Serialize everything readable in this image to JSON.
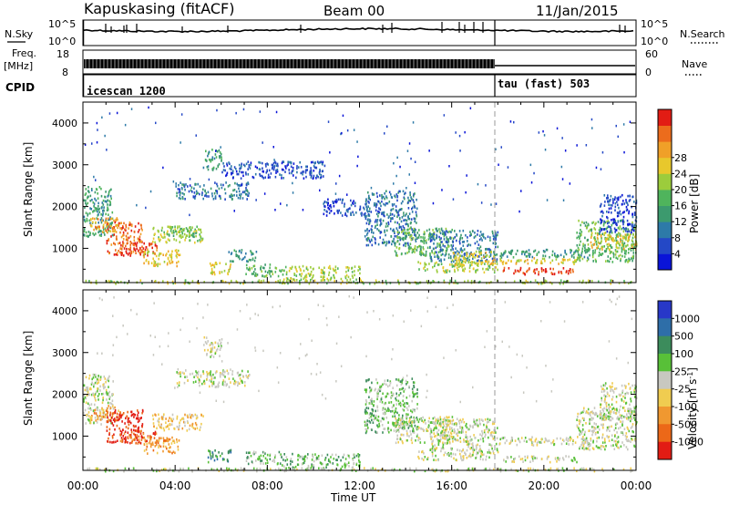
{
  "header": {
    "station": "Kapuskasing (fitACF)",
    "beam": "Beam 00",
    "date": "11/Jan/2015"
  },
  "noise_panel": {
    "left_label": "N.Sky",
    "right_label": "N.Search",
    "ticks_left": [
      "10^5",
      "10^0"
    ],
    "ticks_right": [
      "10^5",
      "10^0"
    ]
  },
  "freq_panel": {
    "left_label_top": "Freq.",
    "left_label_unit": "[MHz]",
    "right_label": "Nave",
    "ticks_left": [
      "18",
      "8"
    ],
    "ticks_right": [
      "60",
      "0"
    ]
  },
  "cpid_panel": {
    "label": "CPID",
    "segments": [
      {
        "name": "icescan 1200",
        "start_hour": 0,
        "end_hour": 18
      },
      {
        "name": "tau (fast) 503",
        "start_hour": 18,
        "end_hour": 24
      }
    ]
  },
  "chart_data": [
    {
      "type": "heatmap",
      "title": "",
      "ylabel": "Slant Range [km]",
      "xlabel": "Time UT",
      "xlim": [
        0,
        24
      ],
      "ylim": [
        180,
        4500
      ],
      "y_ticks": [
        "1000",
        "2000",
        "3000",
        "4000"
      ],
      "x_ticks": [
        "00:00",
        "04:00",
        "08:00",
        "12:00",
        "16:00",
        "20:00",
        "00:00"
      ],
      "colorbar": {
        "label": "Power [dB]",
        "ticks": [
          "4",
          "8",
          "12",
          "16",
          "20",
          "24",
          "28"
        ],
        "colors": [
          "#0a14d8",
          "#2448c6",
          "#2d7aa8",
          "#3c9a6e",
          "#4fb45c",
          "#9ccc3c",
          "#e8c82c",
          "#f0a028",
          "#ec6c1c",
          "#e21c14"
        ]
      },
      "regions": [
        {
          "t0": 0.0,
          "t1": 1.3,
          "r0": 1300,
          "r1": 2500,
          "level": 3
        },
        {
          "t0": 0.3,
          "t1": 1.6,
          "r0": 1400,
          "r1": 1750,
          "level": 7
        },
        {
          "t0": 1.0,
          "t1": 2.6,
          "r0": 850,
          "r1": 1650,
          "level": 8
        },
        {
          "t0": 1.6,
          "t1": 3.2,
          "r0": 850,
          "r1": 1150,
          "level": 9
        },
        {
          "t0": 2.6,
          "t1": 4.2,
          "r0": 600,
          "r1": 1000,
          "level": 6
        },
        {
          "t0": 3.0,
          "t1": 5.2,
          "r0": 1150,
          "r1": 1550,
          "level": 5
        },
        {
          "t0": 3.6,
          "t1": 5.0,
          "r0": 1300,
          "r1": 1550,
          "level": 4
        },
        {
          "t0": 4.0,
          "t1": 7.2,
          "r0": 2200,
          "r1": 2600,
          "level": 2
        },
        {
          "t0": 5.2,
          "t1": 6.0,
          "r0": 2900,
          "r1": 3400,
          "level": 3
        },
        {
          "t0": 6.0,
          "t1": 10.5,
          "r0": 2700,
          "r1": 3100,
          "level": 1
        },
        {
          "t0": 5.4,
          "t1": 6.4,
          "r0": 400,
          "r1": 700,
          "level": 6
        },
        {
          "t0": 6.3,
          "t1": 7.5,
          "r0": 700,
          "r1": 1000,
          "level": 3
        },
        {
          "t0": 7.0,
          "t1": 8.6,
          "r0": 350,
          "r1": 650,
          "level": 4
        },
        {
          "t0": 8.6,
          "t1": 12.0,
          "r0": 250,
          "r1": 600,
          "level": 5
        },
        {
          "t0": 10.4,
          "t1": 12.4,
          "r0": 1800,
          "r1": 2200,
          "level": 1
        },
        {
          "t0": 12.2,
          "t1": 14.5,
          "r0": 1100,
          "r1": 2400,
          "level": 2
        },
        {
          "t0": 13.5,
          "t1": 16.0,
          "r0": 850,
          "r1": 1500,
          "level": 4
        },
        {
          "t0": 15.0,
          "t1": 18.0,
          "r0": 700,
          "r1": 1450,
          "level": 2
        },
        {
          "t0": 14.5,
          "t1": 18.0,
          "r0": 450,
          "r1": 700,
          "level": 5
        },
        {
          "t0": 16.0,
          "t1": 18.0,
          "r0": 600,
          "r1": 950,
          "level": 6
        },
        {
          "t0": 18.0,
          "t1": 22.0,
          "r0": 800,
          "r1": 1000,
          "level": 3
        },
        {
          "t0": 18.0,
          "t1": 21.6,
          "r0": 650,
          "r1": 800,
          "level": 6
        },
        {
          "t0": 18.2,
          "t1": 21.4,
          "r0": 400,
          "r1": 560,
          "level": 9
        },
        {
          "t0": 21.4,
          "t1": 24.0,
          "r0": 700,
          "r1": 1700,
          "level": 4
        },
        {
          "t0": 22.0,
          "t1": 24.0,
          "r0": 1000,
          "r1": 1400,
          "level": 6
        },
        {
          "t0": 22.4,
          "t1": 24.0,
          "r0": 1400,
          "r1": 2300,
          "level": 1
        },
        {
          "t0": 0.0,
          "t1": 24.0,
          "r0": 180,
          "r1": 260,
          "level": 5
        }
      ]
    },
    {
      "type": "heatmap",
      "title": "",
      "ylabel": "Slant Range [km]",
      "xlabel": "Time UT",
      "xlim": [
        0,
        24
      ],
      "ylim": [
        180,
        4500
      ],
      "y_ticks": [
        "1000",
        "2000",
        "3000",
        "4000"
      ],
      "x_ticks": [
        "00:00",
        "04:00",
        "08:00",
        "12:00",
        "16:00",
        "20:00",
        "00:00"
      ],
      "colorbar": {
        "label": "Velocity [m s^-1]",
        "ticks": [
          "1000",
          "500",
          "100",
          "25",
          "-25",
          "-100",
          "-500",
          "-1000"
        ],
        "colors": [
          "#2838c8",
          "#2e6ea8",
          "#3c8c5c",
          "#58c038",
          "#c8c8c0",
          "#f0cc50",
          "#f09830",
          "#ec6818",
          "#e21c14"
        ]
      },
      "regions": [
        {
          "t0": 0.0,
          "t1": 1.3,
          "r0": 1300,
          "r1": 2500,
          "level": 4
        },
        {
          "t0": 0.3,
          "t1": 1.6,
          "r0": 1400,
          "r1": 1750,
          "level": 6
        },
        {
          "t0": 1.0,
          "t1": 2.6,
          "r0": 850,
          "r1": 1650,
          "level": 8
        },
        {
          "t0": 1.6,
          "t1": 3.2,
          "r0": 850,
          "r1": 1150,
          "level": 7
        },
        {
          "t0": 2.6,
          "t1": 4.2,
          "r0": 600,
          "r1": 1000,
          "level": 6
        },
        {
          "t0": 3.0,
          "t1": 5.2,
          "r0": 1150,
          "r1": 1550,
          "level": 5
        },
        {
          "t0": 4.0,
          "t1": 7.2,
          "r0": 2200,
          "r1": 2600,
          "level": 4
        },
        {
          "t0": 5.2,
          "t1": 6.0,
          "r0": 2900,
          "r1": 3400,
          "level": 4
        },
        {
          "t0": 5.4,
          "t1": 6.4,
          "r0": 400,
          "r1": 700,
          "level": 2
        },
        {
          "t0": 7.0,
          "t1": 8.6,
          "r0": 350,
          "r1": 650,
          "level": 3
        },
        {
          "t0": 8.6,
          "t1": 12.0,
          "r0": 250,
          "r1": 600,
          "level": 3
        },
        {
          "t0": 12.2,
          "t1": 14.5,
          "r0": 1100,
          "r1": 2400,
          "level": 3
        },
        {
          "t0": 13.5,
          "t1": 16.0,
          "r0": 850,
          "r1": 1500,
          "level": 4
        },
        {
          "t0": 15.0,
          "t1": 18.0,
          "r0": 700,
          "r1": 1450,
          "level": 4
        },
        {
          "t0": 14.5,
          "t1": 18.0,
          "r0": 450,
          "r1": 700,
          "level": 4
        },
        {
          "t0": 18.0,
          "t1": 22.0,
          "r0": 800,
          "r1": 1000,
          "level": 4
        },
        {
          "t0": 18.2,
          "t1": 21.4,
          "r0": 400,
          "r1": 560,
          "level": 4
        },
        {
          "t0": 21.4,
          "t1": 24.0,
          "r0": 700,
          "r1": 1700,
          "level": 4
        },
        {
          "t0": 22.4,
          "t1": 24.0,
          "r0": 1400,
          "r1": 2300,
          "level": 4
        },
        {
          "t0": 0.0,
          "t1": 24.0,
          "r0": 180,
          "r1": 260,
          "level": 4
        }
      ]
    }
  ]
}
